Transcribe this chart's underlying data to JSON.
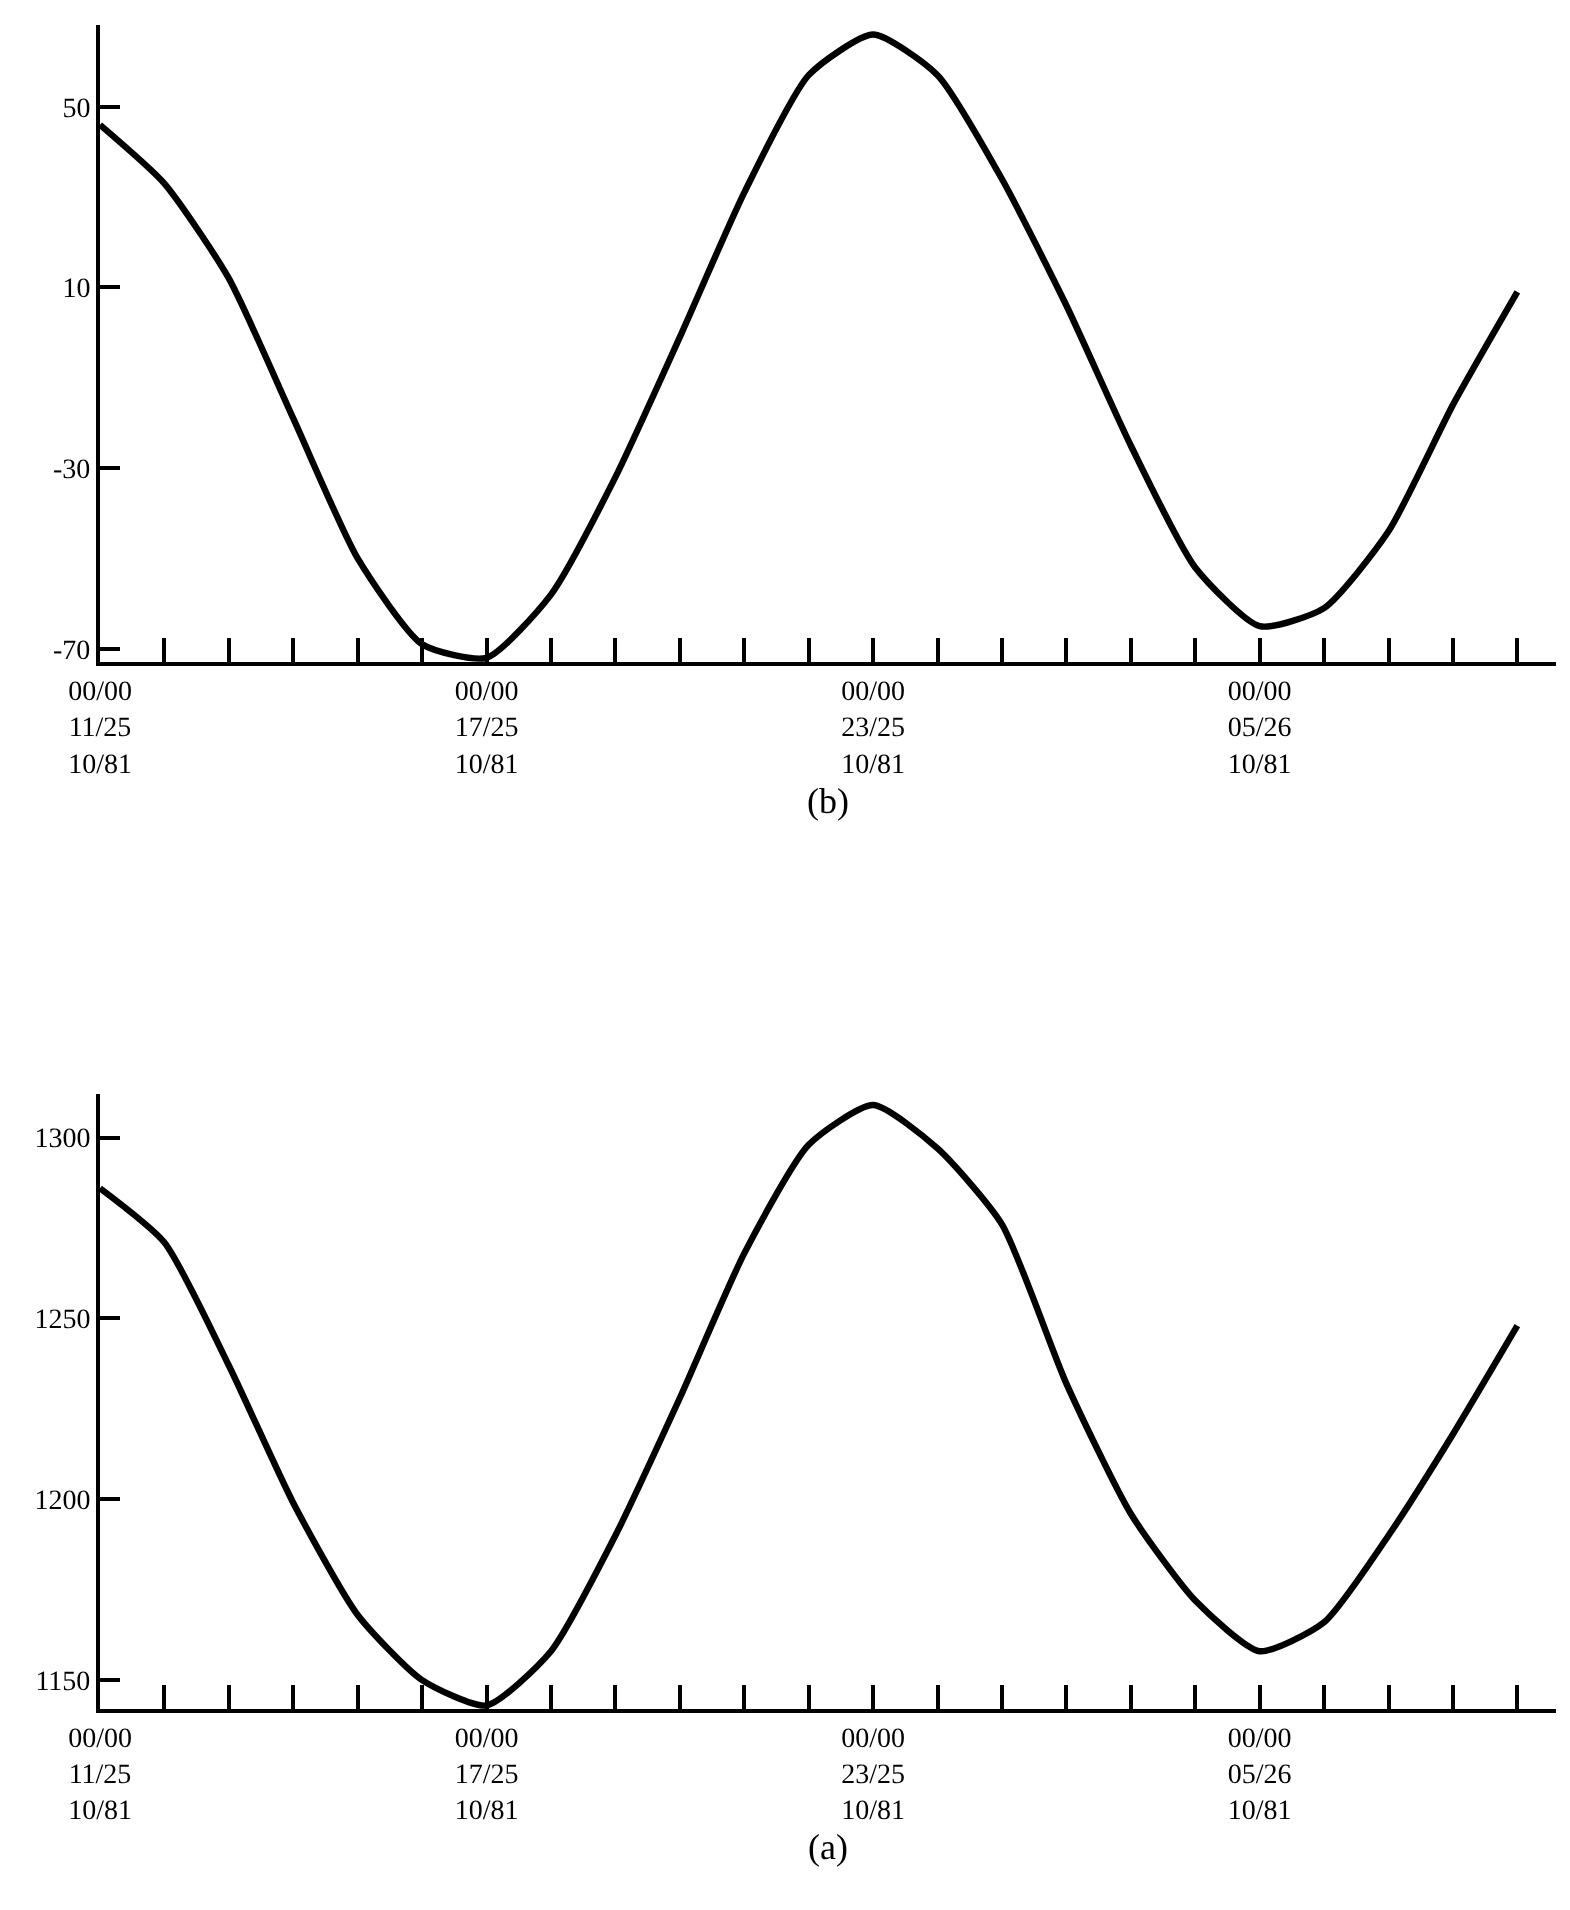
{
  "chart_data": [
    {
      "type": "line",
      "xlabel": "(b)",
      "categories": [
        "00/00\n11/25\n10/81",
        null,
        null,
        null,
        null,
        null,
        "00/00\n17/25\n10/81",
        null,
        null,
        null,
        null,
        null,
        "00/00\n23/25\n10/81",
        null,
        null,
        null,
        null,
        null,
        "00/00\n05/26\n10/81",
        null,
        null,
        null,
        null
      ],
      "series": [
        {
          "color": "#000000",
          "values": [
            46,
            33,
            12,
            -19,
            -50,
            -69,
            -72,
            -58,
            -32,
            -1,
            31,
            57,
            66,
            57,
            34,
            6,
            -25,
            -52,
            -65,
            -61,
            -44,
            -16,
            9
          ]
        }
      ],
      "ylim": [
        -73,
        68
      ],
      "yticks": [
        -70,
        -30,
        10,
        50
      ],
      "marker": "none",
      "line_style": "solid"
    },
    {
      "type": "line",
      "xlabel": "(a)",
      "categories": [
        "00/00\n11/25\n10/81",
        null,
        null,
        null,
        null,
        null,
        "00/00\n17/25\n10/81",
        null,
        null,
        null,
        null,
        null,
        "00/00\n23/25\n10/81",
        null,
        null,
        null,
        null,
        null,
        "00/00\n05/26\n10/81",
        null,
        null,
        null,
        null
      ],
      "series": [
        {
          "color": "#000000",
          "values": [
            1286,
            1271,
            1237,
            1199,
            1168,
            1150,
            1143,
            1158,
            1190,
            1228,
            1268,
            1298,
            1309,
            1297,
            1276,
            1232,
            1196,
            1172,
            1158,
            1166,
            1190,
            1218,
            1248
          ]
        }
      ],
      "ylim": [
        1142,
        1312
      ],
      "yticks": [
        1150,
        1200,
        1250,
        1300
      ],
      "marker": "none",
      "line_style": "solid"
    }
  ]
}
